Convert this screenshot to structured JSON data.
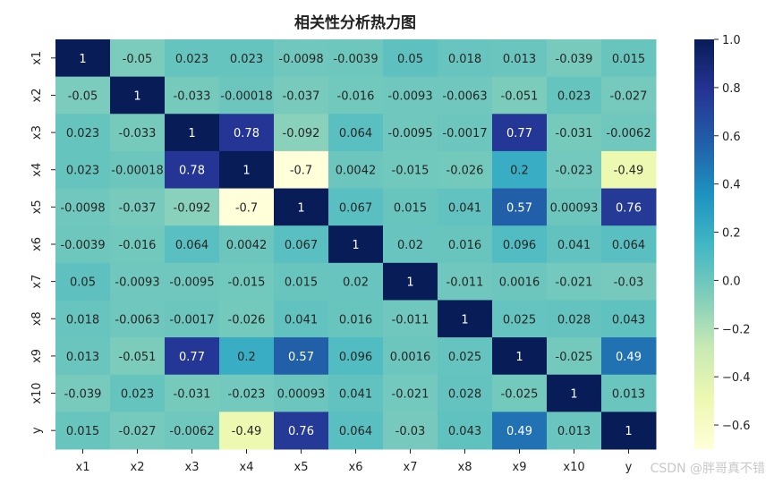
{
  "chart_data": {
    "type": "heatmap",
    "title": "相关性分析热力图",
    "xlabels": [
      "x1",
      "x2",
      "x3",
      "x4",
      "x5",
      "x6",
      "x7",
      "x8",
      "x9",
      "x10",
      "y"
    ],
    "ylabels": [
      "x1",
      "x2",
      "x3",
      "x4",
      "x5",
      "x6",
      "x7",
      "x8",
      "x9",
      "x10",
      "y"
    ],
    "values": [
      [
        1,
        -0.05,
        0.023,
        0.023,
        -0.0098,
        -0.0039,
        0.05,
        0.018,
        0.013,
        -0.039,
        0.015
      ],
      [
        -0.05,
        1,
        -0.033,
        -0.00018,
        -0.037,
        -0.016,
        -0.0093,
        -0.0063,
        -0.051,
        0.023,
        -0.027
      ],
      [
        0.023,
        -0.033,
        1,
        0.78,
        -0.092,
        0.064,
        -0.0095,
        -0.0017,
        0.77,
        -0.031,
        -0.0062
      ],
      [
        0.023,
        -0.00018,
        0.78,
        1,
        -0.7,
        0.0042,
        -0.015,
        -0.026,
        0.2,
        -0.023,
        -0.49
      ],
      [
        -0.0098,
        -0.037,
        -0.092,
        -0.7,
        1,
        0.067,
        0.015,
        0.041,
        0.57,
        0.00093,
        0.76
      ],
      [
        -0.0039,
        -0.016,
        0.064,
        0.0042,
        0.067,
        1,
        0.02,
        0.016,
        0.096,
        0.041,
        0.064
      ],
      [
        0.05,
        -0.0093,
        -0.0095,
        -0.015,
        0.015,
        0.02,
        1,
        -0.011,
        0.0016,
        -0.021,
        -0.03
      ],
      [
        0.018,
        -0.0063,
        -0.0017,
        -0.026,
        0.041,
        0.016,
        -0.011,
        1,
        0.025,
        0.028,
        0.043
      ],
      [
        0.013,
        -0.051,
        0.77,
        0.2,
        0.57,
        0.096,
        0.0016,
        0.025,
        1,
        -0.025,
        0.49
      ],
      [
        -0.039,
        0.023,
        -0.031,
        -0.023,
        0.00093,
        0.041,
        -0.021,
        0.028,
        -0.025,
        1,
        0.013
      ],
      [
        0.015,
        -0.027,
        -0.0062,
        -0.49,
        0.76,
        0.064,
        -0.03,
        0.043,
        0.49,
        0.013,
        1
      ]
    ],
    "labels": [
      [
        "1",
        "-0.05",
        "0.023",
        "0.023",
        "-0.0098",
        "-0.0039",
        "0.05",
        "0.018",
        "0.013",
        "-0.039",
        "0.015"
      ],
      [
        "-0.05",
        "1",
        "-0.033",
        "-0.00018",
        "-0.037",
        "-0.016",
        "-0.0093",
        "-0.0063",
        "-0.051",
        "0.023",
        "-0.027"
      ],
      [
        "0.023",
        "-0.033",
        "1",
        "0.78",
        "-0.092",
        "0.064",
        "-0.0095",
        "-0.0017",
        "0.77",
        "-0.031",
        "-0.0062"
      ],
      [
        "0.023",
        "-0.00018",
        "0.78",
        "1",
        "-0.7",
        "0.0042",
        "-0.015",
        "-0.026",
        "0.2",
        "-0.023",
        "-0.49"
      ],
      [
        "-0.0098",
        "-0.037",
        "-0.092",
        "-0.7",
        "1",
        "0.067",
        "0.015",
        "0.041",
        "0.57",
        "0.00093",
        "0.76"
      ],
      [
        "-0.0039",
        "-0.016",
        "0.064",
        "0.0042",
        "0.067",
        "1",
        "0.02",
        "0.016",
        "0.096",
        "0.041",
        "0.064"
      ],
      [
        "0.05",
        "-0.0093",
        "-0.0095",
        "-0.015",
        "0.015",
        "0.02",
        "1",
        "-0.011",
        "0.0016",
        "-0.021",
        "-0.03"
      ],
      [
        "0.018",
        "-0.0063",
        "-0.0017",
        "-0.026",
        "0.041",
        "0.016",
        "-0.011",
        "1",
        "0.025",
        "0.028",
        "0.043"
      ],
      [
        "0.013",
        "-0.051",
        "0.77",
        "0.2",
        "0.57",
        "0.096",
        "0.0016",
        "0.025",
        "1",
        "-0.025",
        "0.49"
      ],
      [
        "-0.039",
        "0.023",
        "-0.031",
        "-0.023",
        "0.00093",
        "0.041",
        "-0.021",
        "0.028",
        "-0.025",
        "1",
        "0.013"
      ],
      [
        "0.015",
        "-0.027",
        "-0.0062",
        "-0.49",
        "0.76",
        "0.064",
        "-0.03",
        "0.043",
        "0.49",
        "0.013",
        "1"
      ]
    ],
    "vmin": -0.7,
    "vmax": 1.0,
    "colormap": "YlGnBu",
    "colorbar_ticks": [
      "1.0",
      "0.8",
      "0.6",
      "0.4",
      "0.2",
      "0.0",
      "−0.2",
      "−0.4",
      "−0.6"
    ],
    "colorbar_tick_values": [
      1.0,
      0.8,
      0.6,
      0.4,
      0.2,
      0.0,
      -0.2,
      -0.4,
      -0.6
    ]
  },
  "watermark": "CSDN @胖哥真不错"
}
